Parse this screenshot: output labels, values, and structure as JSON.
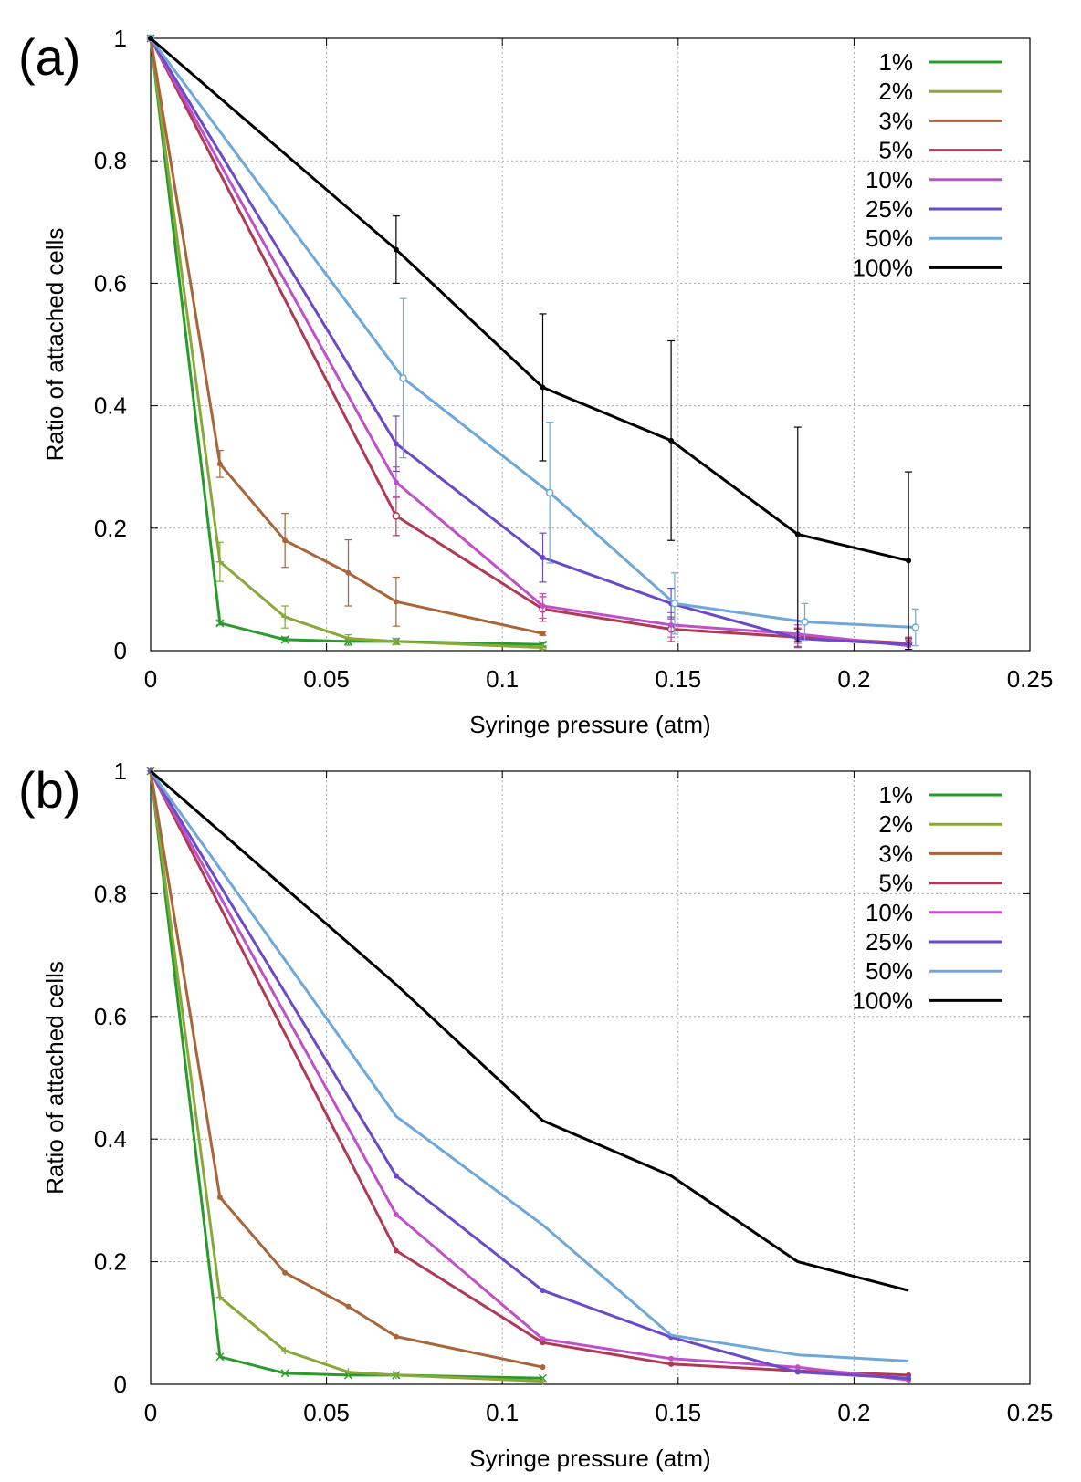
{
  "chart_data": [
    {
      "type": "line",
      "panel_label": "(a)",
      "xlabel": "Syringe pressure (atm)",
      "ylabel": "Ratio of attached cells",
      "xlim": [
        0,
        0.25
      ],
      "ylim": [
        0,
        1
      ],
      "xticks": [
        "0",
        "0.05",
        "0.1",
        "0.15",
        "0.2",
        "0.25"
      ],
      "xtick_values": [
        0,
        0.05,
        0.1,
        0.15,
        0.2,
        0.25
      ],
      "yticks": [
        "0",
        "0.2",
        "0.4",
        "0.6",
        "0.8",
        "1"
      ],
      "ytick_values": [
        0,
        0.2,
        0.4,
        0.6,
        0.8,
        1
      ],
      "grid": true,
      "legend_position": "top-right",
      "error_bars": true,
      "series": [
        {
          "name": "1%",
          "color": "#2a9a2a",
          "marker": "x",
          "x": [
            0,
            0.0197,
            0.0382,
            0.0562,
            0.0698,
            0.1115
          ],
          "y": [
            1,
            0.045,
            0.018,
            0.015,
            0.015,
            0.01
          ],
          "err": [
            0,
            0.003,
            0.004,
            0.006,
            0.005,
            0.003
          ]
        },
        {
          "name": "2%",
          "color": "#88a83a",
          "marker": "+",
          "x": [
            0,
            0.0197,
            0.0382,
            0.0562,
            0.0698,
            0.1115
          ],
          "y": [
            1,
            0.145,
            0.055,
            0.02,
            0.015,
            0.005
          ],
          "err": [
            0,
            0.032,
            0.018,
            0.006,
            0.005,
            0.003
          ]
        },
        {
          "name": "3%",
          "color": "#a8653a",
          "marker": "dot",
          "x": [
            0,
            0.0197,
            0.0382,
            0.0562,
            0.0698,
            0.1115
          ],
          "y": [
            1,
            0.305,
            0.18,
            0.127,
            0.08,
            0.028
          ],
          "err": [
            0,
            0.022,
            0.044,
            0.054,
            0.04,
            0.003
          ]
        },
        {
          "name": "5%",
          "color": "#b03a55",
          "marker": "circle",
          "x": [
            0,
            0.0698,
            0.1115,
            0.148,
            0.184,
            0.2155
          ],
          "y": [
            1,
            0.22,
            0.068,
            0.035,
            0.022,
            0.012
          ],
          "err": [
            0,
            0.032,
            0.02,
            0.02,
            0.015,
            0.01
          ]
        },
        {
          "name": "10%",
          "color": "#c050c8",
          "marker": "dot",
          "x": [
            0,
            0.0698,
            0.1115,
            0.148,
            0.184,
            0.2155
          ],
          "y": [
            1,
            0.275,
            0.073,
            0.042,
            0.027,
            0.008
          ],
          "err": [
            0,
            0.025,
            0.02,
            0.02,
            0.015,
            0.01
          ]
        },
        {
          "name": "25%",
          "color": "#6a4ac8",
          "marker": "dot",
          "x": [
            0,
            0.0698,
            0.1115,
            0.148,
            0.184,
            0.2155
          ],
          "y": [
            1,
            0.338,
            0.152,
            0.077,
            0.02,
            0.01
          ],
          "err": [
            0,
            0.045,
            0.04,
            0.025,
            0.015,
            0.01
          ]
        },
        {
          "name": "50%",
          "color": "#6fa8d8",
          "marker": "circle",
          "x": [
            0,
            0.0718,
            0.1135,
            0.149,
            0.186,
            0.2175
          ],
          "y": [
            1,
            0.445,
            0.258,
            0.077,
            0.047,
            0.038
          ],
          "err": [
            0,
            0.13,
            0.115,
            0.05,
            0.03,
            0.03
          ]
        },
        {
          "name": "100%",
          "color": "#000000",
          "marker": "dot",
          "x": [
            0,
            0.0698,
            0.1115,
            0.148,
            0.184,
            0.2155
          ],
          "y": [
            1,
            0.655,
            0.43,
            0.343,
            0.19,
            0.147
          ],
          "err": [
            0,
            0.055,
            0.12,
            0.163,
            0.175,
            0.145
          ]
        }
      ]
    },
    {
      "type": "line",
      "panel_label": "(b)",
      "xlabel": "Syringe pressure (atm)",
      "ylabel": "Ratio of attached cells",
      "xlim": [
        0,
        0.25
      ],
      "ylim": [
        0,
        1
      ],
      "xticks": [
        "0",
        "0.05",
        "0.1",
        "0.15",
        "0.2",
        "0.25"
      ],
      "xtick_values": [
        0,
        0.05,
        0.1,
        0.15,
        0.2,
        0.25
      ],
      "yticks": [
        "0",
        "0.2",
        "0.4",
        "0.6",
        "0.8",
        "1"
      ],
      "ytick_values": [
        0,
        0.2,
        0.4,
        0.6,
        0.8,
        1
      ],
      "grid": true,
      "legend_position": "top-right",
      "error_bars": false,
      "series": [
        {
          "name": "1%",
          "color": "#2a9a2a",
          "marker": "x",
          "x": [
            0,
            0.0197,
            0.0382,
            0.0562,
            0.0698,
            0.1115
          ],
          "y": [
            1,
            0.045,
            0.018,
            0.015,
            0.015,
            0.01
          ]
        },
        {
          "name": "2%",
          "color": "#88a83a",
          "marker": "+",
          "x": [
            0,
            0.0197,
            0.0382,
            0.0562,
            0.0698,
            0.1115
          ],
          "y": [
            1,
            0.142,
            0.055,
            0.02,
            0.015,
            0.005
          ]
        },
        {
          "name": "3%",
          "color": "#a8653a",
          "marker": "dot",
          "x": [
            0,
            0.0197,
            0.0382,
            0.0562,
            0.0698,
            0.1115
          ],
          "y": [
            1,
            0.305,
            0.182,
            0.127,
            0.078,
            0.028
          ]
        },
        {
          "name": "5%",
          "color": "#b03a55",
          "marker": "dot",
          "x": [
            0,
            0.0698,
            0.1115,
            0.148,
            0.184,
            0.2155
          ],
          "y": [
            1,
            0.218,
            0.068,
            0.033,
            0.022,
            0.015
          ]
        },
        {
          "name": "10%",
          "color": "#c050c8",
          "marker": "dot",
          "x": [
            0,
            0.0698,
            0.1115,
            0.148,
            0.184,
            0.2155
          ],
          "y": [
            1,
            0.277,
            0.074,
            0.042,
            0.028,
            0.007
          ]
        },
        {
          "name": "25%",
          "color": "#6a4ac8",
          "marker": "dot",
          "x": [
            0,
            0.0698,
            0.1115,
            0.148,
            0.184,
            0.2155
          ],
          "y": [
            1,
            0.34,
            0.153,
            0.077,
            0.02,
            0.01
          ]
        },
        {
          "name": "50%",
          "color": "#6fa8d8",
          "marker": "none",
          "x": [
            0,
            0.0698,
            0.1115,
            0.148,
            0.184,
            0.2155
          ],
          "y": [
            1,
            0.437,
            0.26,
            0.08,
            0.048,
            0.038
          ]
        },
        {
          "name": "100%",
          "color": "#000000",
          "marker": "none",
          "x": [
            0,
            0.0698,
            0.1115,
            0.148,
            0.184,
            0.2155
          ],
          "y": [
            1,
            0.652,
            0.43,
            0.34,
            0.2,
            0.153
          ]
        }
      ]
    }
  ]
}
